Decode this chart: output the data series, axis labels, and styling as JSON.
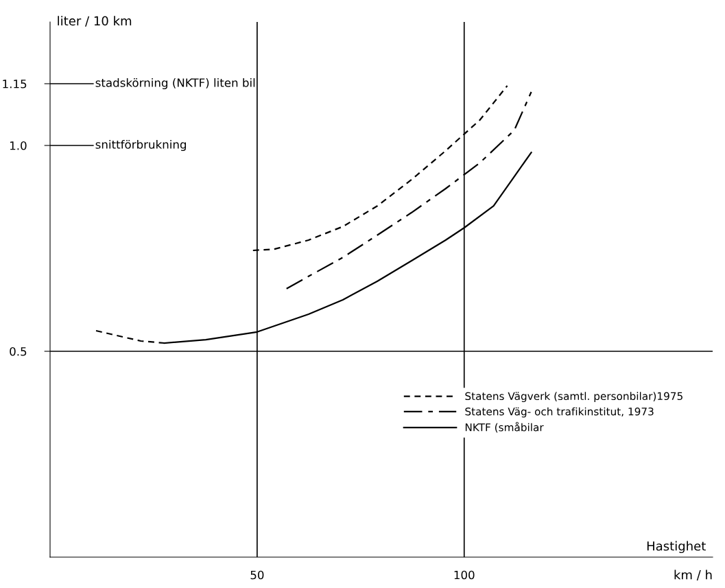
{
  "chart_data": {
    "type": "line",
    "xlabel": "Hastighet",
    "ylabel": "liter / 10 km",
    "annotations": [
      "km / h"
    ],
    "xlim": [
      0,
      160
    ],
    "ylim": [
      0,
      1.3
    ],
    "xticks": [
      50,
      100
    ],
    "yticks": [
      0.5,
      {
        "value": 1.0,
        "label": "1.0"
      },
      1.15
    ],
    "grid": false,
    "legend": "center right",
    "marker": "none",
    "ref_lines": [
      {
        "axis": "y",
        "value": 1.15,
        "label": "stadskörning (NKTF) liten bil"
      },
      {
        "axis": "y",
        "value": 1.0,
        "label": "snittförbrukning"
      },
      {
        "axis": "y",
        "value": 0.5
      },
      {
        "axis": "x",
        "value": 50
      },
      {
        "axis": "x",
        "value": 100
      }
    ],
    "series": [
      {
        "name": "Statens Vägverk (samtl. personbilar)1975",
        "color": "#000000",
        "line_style": "dashed",
        "x": [
          49,
          54.1,
          62.4,
          70.7,
          79,
          87.3,
          95.5,
          103.8,
          110.4
        ],
        "values": [
          0.745,
          0.748,
          0.77,
          0.803,
          0.853,
          0.917,
          0.987,
          1.062,
          1.145
        ]
      },
      {
        "name": "Statens Väg- och trafikinstitut, 1973",
        "color": "#000000",
        "line_style": "dashdot",
        "x": [
          57.1,
          62.4,
          70.7,
          79,
          87.3,
          95.5,
          103.8,
          112.1,
          116.2
        ],
        "values": [
          0.652,
          0.682,
          0.728,
          0.782,
          0.837,
          0.895,
          0.958,
          1.037,
          1.13
        ]
      },
      {
        "name": "NKTF (småbilar",
        "color": "#000000",
        "line_style": "solid",
        "x": [
          27.6,
          37.6,
          50,
          62.4,
          70.7,
          79,
          87.3,
          95.5,
          100,
          107.1,
          116.2
        ],
        "values": [
          0.52,
          0.528,
          0.547,
          0.59,
          0.625,
          0.67,
          0.72,
          0.77,
          0.8,
          0.853,
          0.983
        ]
      },
      {
        "color": "#000000",
        "line_style": "dashed",
        "x": [
          11.1,
          21.9,
          27.6
        ],
        "values": [
          0.55,
          0.525,
          0.52
        ]
      }
    ]
  }
}
